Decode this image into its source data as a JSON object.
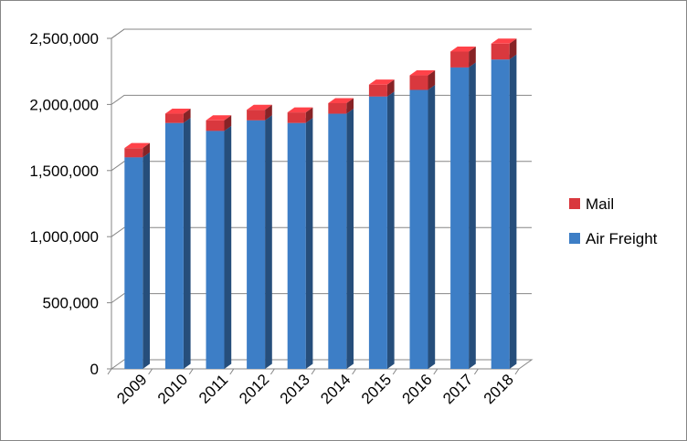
{
  "chart_data": {
    "type": "bar",
    "stacked": true,
    "three_d": true,
    "categories": [
      "2009",
      "2010",
      "2011",
      "2012",
      "2013",
      "2014",
      "2015",
      "2016",
      "2017",
      "2018"
    ],
    "series": [
      {
        "name": "Air Freight",
        "color": "#3d7ec6",
        "values": [
          1600000,
          1860000,
          1800000,
          1880000,
          1860000,
          1930000,
          2060000,
          2110000,
          2280000,
          2340000
        ]
      },
      {
        "name": "Mail",
        "color": "#d9383e",
        "values": [
          70000,
          70000,
          80000,
          80000,
          80000,
          80000,
          90000,
          110000,
          120000,
          120000
        ]
      }
    ],
    "y_ticks": [
      "0",
      "500,000",
      "1,000,000",
      "1,500,000",
      "2,000,000",
      "2,500,000"
    ],
    "ylim": [
      0,
      2500000
    ],
    "grid": true,
    "legend_position": "right",
    "legend_order": [
      "Mail",
      "Air Freight"
    ]
  }
}
